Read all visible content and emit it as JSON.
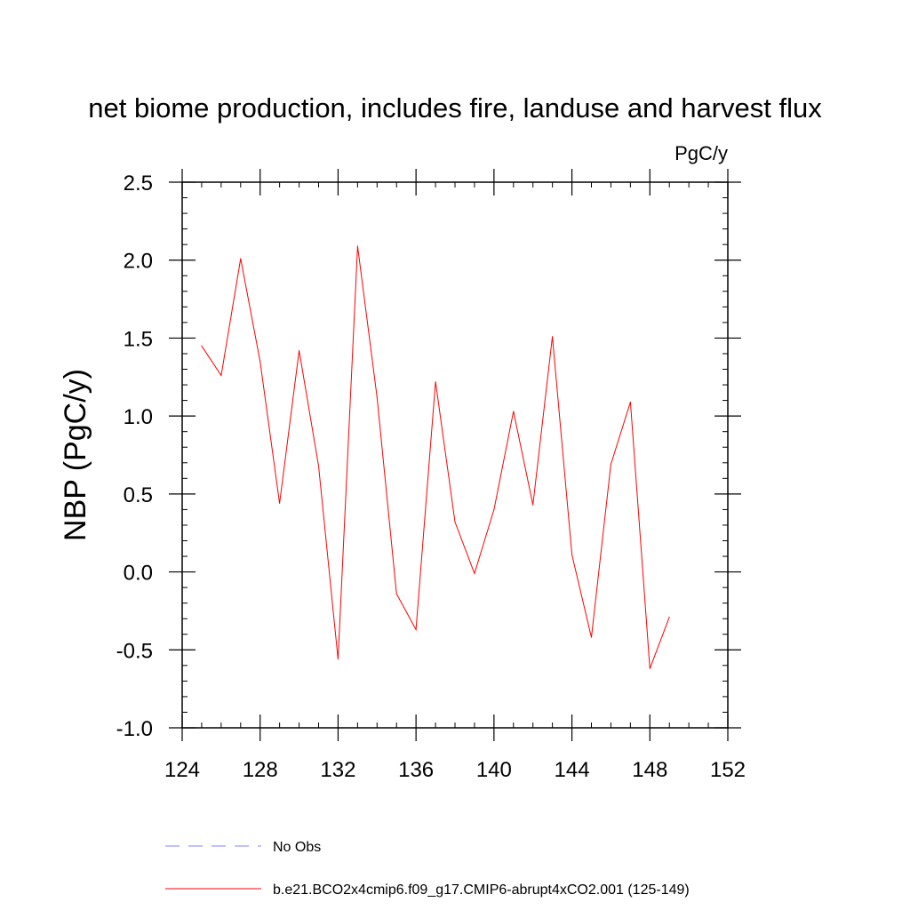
{
  "chart_data": {
    "type": "line",
    "title": "net biome production, includes fire, landuse and harvest flux",
    "units_label": "PgC/y",
    "ylabel": "NBP  (PgC/y)",
    "xlabel": "",
    "xlim": [
      124,
      152
    ],
    "ylim": [
      -1.0,
      2.5
    ],
    "x_ticks": [
      124,
      128,
      132,
      136,
      140,
      144,
      148,
      152
    ],
    "x_tick_labels": [
      "124",
      "128",
      "132",
      "136",
      "140",
      "144",
      "148",
      "152"
    ],
    "y_ticks": [
      -1.0,
      -0.5,
      0.0,
      0.5,
      1.0,
      1.5,
      2.0,
      2.5
    ],
    "y_tick_labels": [
      "-1.0",
      "-0.5",
      "0.0",
      "0.5",
      "1.0",
      "1.5",
      "2.0",
      "2.5"
    ],
    "grid": false,
    "legend_position": "bottom",
    "series": [
      {
        "name": "b.e21.BCO2x4cmip6.f09_g17.CMIP6-abrupt4xCO2.001 (125-149)",
        "color": "#ff0000",
        "style": "solid",
        "x": [
          125,
          126,
          127,
          128,
          129,
          130,
          131,
          132,
          133,
          134,
          135,
          136,
          137,
          138,
          139,
          140,
          141,
          142,
          143,
          144,
          145,
          146,
          147,
          148,
          149
        ],
        "y": [
          1.45,
          1.26,
          2.01,
          1.35,
          0.44,
          1.42,
          0.68,
          -0.56,
          2.09,
          1.12,
          -0.14,
          -0.37,
          1.22,
          0.32,
          -0.01,
          0.4,
          1.03,
          0.43,
          1.51,
          0.11,
          -0.42,
          0.69,
          1.09,
          -0.62,
          -0.29
        ]
      }
    ],
    "legend": [
      {
        "label": "No Obs",
        "color": "#8080ff",
        "style": "dashed"
      },
      {
        "label": "b.e21.BCO2x4cmip6.f09_g17.CMIP6-abrupt4xCO2.001 (125-149)",
        "color": "#ff0000",
        "style": "solid"
      }
    ]
  }
}
